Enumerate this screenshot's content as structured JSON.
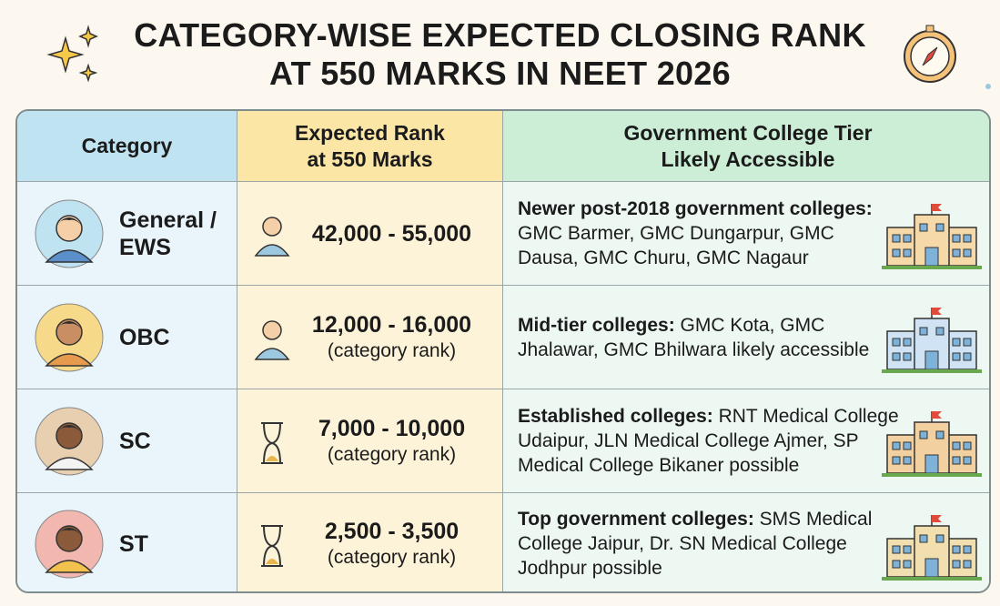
{
  "header": {
    "title_lines": [
      "CATEGORY-WISE EXPECTED CLOSING RANK",
      "AT 550 MARKS IN NEET 2026"
    ]
  },
  "table": {
    "columns": [
      [
        "Category"
      ],
      [
        "Expected Rank",
        "at 550 Marks"
      ],
      [
        "Government College Tier",
        "Likely Accessible"
      ]
    ],
    "rows": [
      {
        "category": "General / EWS",
        "rank": "42,000 - 55,000",
        "tier_heading": "Newer post-2018 government colleges:",
        "tier_text": "GMC Barmer, GMC Dungarpur, GMC Dausa, GMC Churu, GMC Nagaur"
      },
      {
        "category": "OBC",
        "rank": "12,000 - 16,000",
        "rank_note": "(category rank)",
        "tier_heading": "Mid-tier colleges:",
        "tier_text": "GMC Kota, GMC Jhalawar, GMC Bhilwara likely accessible"
      },
      {
        "category": "SC",
        "rank": "7,000 - 10,000",
        "rank_note": "(category rank)",
        "tier_heading": "Established colleges:",
        "tier_text": "RNT Medical College Udaipur, JLN Medical College Ajmer, SP Medical College Bikaner possible"
      },
      {
        "category": "ST",
        "rank": "2,500 - 3,500",
        "rank_note": "(category rank)",
        "tier_heading": "Top government colleges:",
        "tier_text": "SMS Medical College Jaipur, Dr. SN Medical College Jodhpur possible"
      }
    ]
  }
}
